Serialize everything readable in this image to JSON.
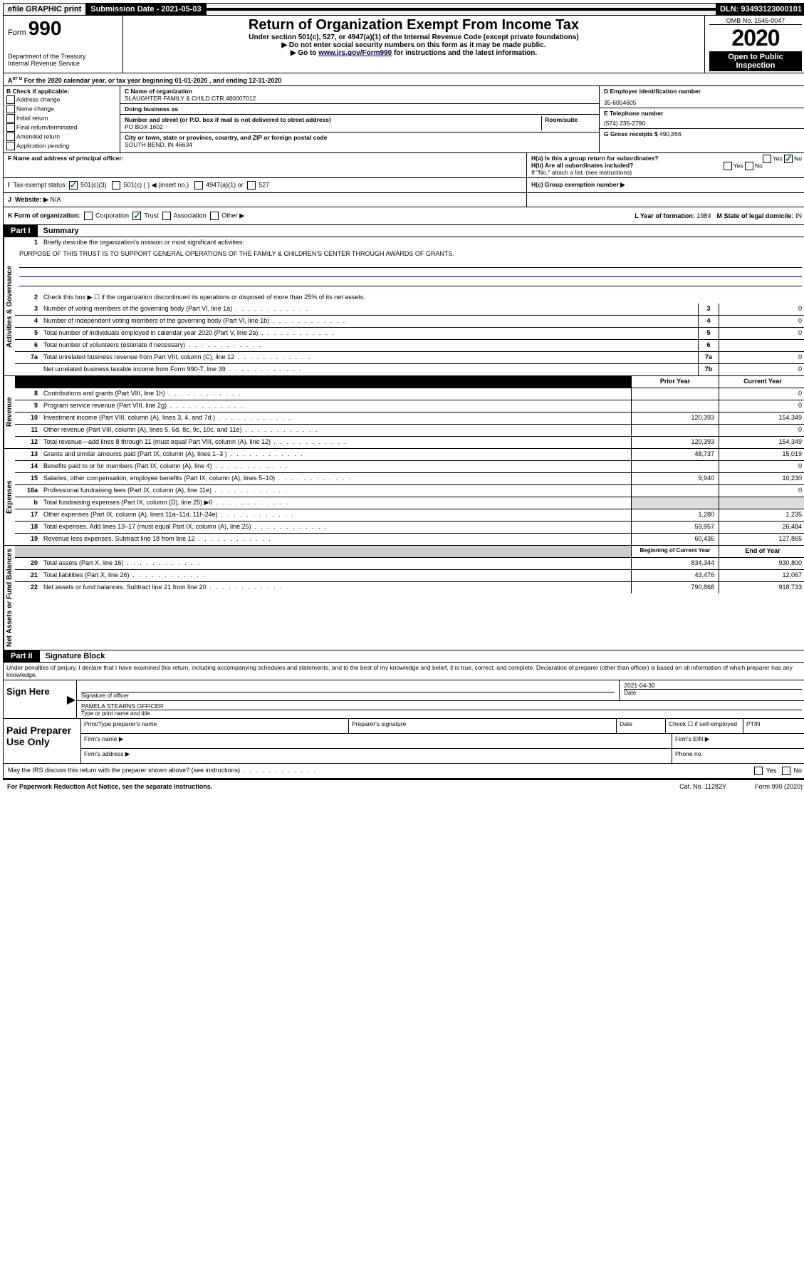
{
  "topbar": {
    "efile": "efile GRAPHIC print",
    "submission": "Submission Date - 2021-05-03",
    "dln": "DLN: 93493123000101"
  },
  "header": {
    "form_label": "Form",
    "form_num": "990",
    "dept": "Department of the Treasury",
    "irs": "Internal Revenue Service",
    "title": "Return of Organization Exempt From Income Tax",
    "sub1": "Under section 501(c), 527, or 4947(a)(1) of the Internal Revenue Code (except private foundations)",
    "sub2": "▶ Do not enter social security numbers on this form as it may be made public.",
    "sub3_pre": "▶ Go to ",
    "sub3_link": "www.irs.gov/Form990",
    "sub3_post": " for instructions and the latest information.",
    "omb": "OMB No. 1545-0047",
    "year": "2020",
    "open": "Open to Public Inspection"
  },
  "rowA": "For the 2020 calendar year, or tax year beginning 01-01-2020    , and ending 12-31-2020",
  "B": {
    "label": "B Check if applicable:",
    "opts": [
      "Address change",
      "Name change",
      "Initial return",
      "Final return/terminated",
      "Amended return",
      "Application pending"
    ]
  },
  "C": {
    "name_lab": "C Name of organization",
    "name": "SLAUGHTER FAMILY & CHILD CTR 480007012",
    "dba_lab": "Doing business as",
    "dba": "",
    "addr_lab": "Number and street (or P.O. box if mail is not delivered to street address)",
    "room_lab": "Room/suite",
    "addr": "PO BOX 1602",
    "city_lab": "City or town, state or province, country, and ZIP or foreign postal code",
    "city": "SOUTH BEND, IN  46634"
  },
  "D": {
    "ein_lab": "D Employer identification number",
    "ein": "35-6054605",
    "tel_lab": "E Telephone number",
    "tel": "(574) 235-2790",
    "gross_lab": "G Gross receipts $",
    "gross": "490,856"
  },
  "F": {
    "lab": "F  Name and address of principal officer:",
    "val": ""
  },
  "H": {
    "a": "H(a)  Is this a group return for subordinates?",
    "b": "H(b)  Are all subordinates included?",
    "b_note": "If \"No,\" attach a list. (see instructions)",
    "c": "H(c)  Group exemption number ▶",
    "yes": "Yes",
    "no": "No"
  },
  "I": {
    "lab": "Tax-exempt status:",
    "o1": "501(c)(3)",
    "o2": "501(c) (  )",
    "o2i": "◀ (insert no.)",
    "o3": "4947(a)(1) or",
    "o4": "527"
  },
  "J": {
    "lab": "Website: ▶",
    "val": "N/A"
  },
  "K": {
    "lab": "K Form of organization:",
    "opts": [
      "Corporation",
      "Trust",
      "Association",
      "Other ▶"
    ],
    "L_lab": "L Year of formation:",
    "L_val": "1984",
    "M_lab": "M State of legal domicile:",
    "M_val": "IN"
  },
  "partI": {
    "hdr": "Part I",
    "title": "Summary",
    "q1": "Briefly describe the organization's mission or most significant activities:",
    "mission": "PURPOSE OF THIS TRUST IS TO SUPPORT GENERAL OPERATIONS OF THE FAMILY & CHILDREN'S CENTER THROUGH AWARDS OF GRANTS.",
    "q2": "Check this box ▶ ☐  if the organization discontinued its operations or disposed of more than 25% of its net assets.",
    "side1": "Activities & Governance",
    "side2": "Revenue",
    "side3": "Expenses",
    "side4": "Net Assets or Fund Balances",
    "rows_gov": [
      {
        "n": "3",
        "d": "Number of voting members of the governing body (Part VI, line 1a)",
        "box": "3",
        "v": "0"
      },
      {
        "n": "4",
        "d": "Number of independent voting members of the governing body (Part VI, line 1b)",
        "box": "4",
        "v": "0"
      },
      {
        "n": "5",
        "d": "Total number of individuals employed in calendar year 2020 (Part V, line 2a)",
        "box": "5",
        "v": "0"
      },
      {
        "n": "6",
        "d": "Total number of volunteers (estimate if necessary)",
        "box": "6",
        "v": ""
      },
      {
        "n": "7a",
        "d": "Total unrelated business revenue from Part VIII, column (C), line 12",
        "box": "7a",
        "v": "0"
      },
      {
        "n": "",
        "d": "Net unrelated business taxable income from Form 990-T, line 39",
        "box": "7b",
        "v": "0"
      }
    ],
    "col_hdr_prior": "Prior Year",
    "col_hdr_curr": "Current Year",
    "rows_rev": [
      {
        "n": "8",
        "d": "Contributions and grants (Part VIII, line 1h)",
        "p": "",
        "c": "0"
      },
      {
        "n": "9",
        "d": "Program service revenue (Part VIII, line 2g)",
        "p": "",
        "c": "0"
      },
      {
        "n": "10",
        "d": "Investment income (Part VIII, column (A), lines 3, 4, and 7d )",
        "p": "120,393",
        "c": "154,349"
      },
      {
        "n": "11",
        "d": "Other revenue (Part VIII, column (A), lines 5, 6d, 8c, 9c, 10c, and 11e)",
        "p": "",
        "c": "0"
      },
      {
        "n": "12",
        "d": "Total revenue—add lines 8 through 11 (must equal Part VIII, column (A), line 12)",
        "p": "120,393",
        "c": "154,349"
      }
    ],
    "rows_exp": [
      {
        "n": "13",
        "d": "Grants and similar amounts paid (Part IX, column (A), lines 1–3 )",
        "p": "48,737",
        "c": "15,019"
      },
      {
        "n": "14",
        "d": "Benefits paid to or for members (Part IX, column (A), line 4)",
        "p": "",
        "c": "0"
      },
      {
        "n": "15",
        "d": "Salaries, other compensation, employee benefits (Part IX, column (A), lines 5–10)",
        "p": "9,940",
        "c": "10,230"
      },
      {
        "n": "16a",
        "d": "Professional fundraising fees (Part IX, column (A), line 11e)",
        "p": "",
        "c": "0"
      },
      {
        "n": "b",
        "d": "Total fundraising expenses (Part IX, column (D), line 25) ▶0",
        "p": "shade",
        "c": "shade"
      },
      {
        "n": "17",
        "d": "Other expenses (Part IX, column (A), lines 11a–11d, 11f–24e)",
        "p": "1,280",
        "c": "1,235"
      },
      {
        "n": "18",
        "d": "Total expenses. Add lines 13–17 (must equal Part IX, column (A), line 25)",
        "p": "59,957",
        "c": "26,484"
      },
      {
        "n": "19",
        "d": "Revenue less expenses. Subtract line 18 from line 12",
        "p": "60,436",
        "c": "127,865"
      }
    ],
    "col_hdr_beg": "Beginning of Current Year",
    "col_hdr_end": "End of Year",
    "rows_net": [
      {
        "n": "20",
        "d": "Total assets (Part X, line 16)",
        "p": "834,344",
        "c": "930,800"
      },
      {
        "n": "21",
        "d": "Total liabilities (Part X, line 26)",
        "p": "43,476",
        "c": "12,067"
      },
      {
        "n": "22",
        "d": "Net assets or fund balances. Subtract line 21 from line 20",
        "p": "790,868",
        "c": "918,733"
      }
    ]
  },
  "partII": {
    "hdr": "Part II",
    "title": "Signature Block",
    "perjury": "Under penalties of perjury, I declare that I have examined this return, including accompanying schedules and statements, and to the best of my knowledge and belief, it is true, correct, and complete. Declaration of preparer (other than officer) is based on all information of which preparer has any knowledge.",
    "sign_here": "Sign Here",
    "sig_of_officer": "Signature of officer",
    "date": "Date",
    "date_val": "2021-04-30",
    "name_title": "PAMELA STEARNS  OFFICER",
    "type_name": "Type or print name and title",
    "paid": "Paid Preparer Use Only",
    "pt_name": "Print/Type preparer's name",
    "pt_sig": "Preparer's signature",
    "pt_date": "Date",
    "pt_check": "Check ☐ if self-employed",
    "ptin": "PTIN",
    "firm_name": "Firm's name    ▶",
    "firm_ein": "Firm's EIN ▶",
    "firm_addr": "Firm's address ▶",
    "phone": "Phone no.",
    "discuss": "May the IRS discuss this return with the preparer shown above? (see instructions)",
    "yes": "Yes",
    "no": "No"
  },
  "footer": {
    "pra": "For Paperwork Reduction Act Notice, see the separate instructions.",
    "cat": "Cat. No. 11282Y",
    "form": "Form 990 (2020)"
  }
}
